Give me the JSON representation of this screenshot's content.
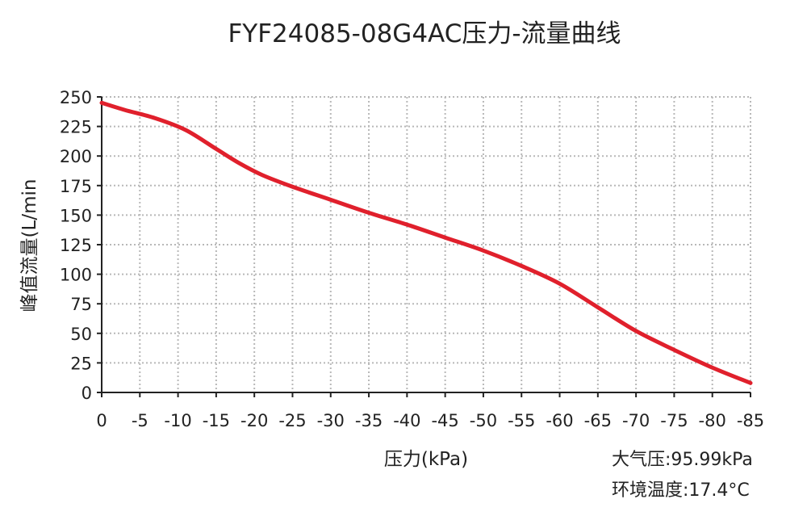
{
  "chart_data": {
    "type": "line",
    "title": "FYF24085-08G4AC压力-流量曲线",
    "xlabel": "压力(kPa)",
    "ylabel": "峰值流量(L/min",
    "x_ticks": [
      "0",
      "-5",
      "-10",
      "-15",
      "-20",
      "-25",
      "-30",
      "-35",
      "-40",
      "-45",
      "-50",
      "-55",
      "-60",
      "-65",
      "-70",
      "-75",
      "-80",
      "-85"
    ],
    "y_ticks": [
      "0",
      "25",
      "50",
      "75",
      "100",
      "125",
      "150",
      "175",
      "200",
      "225",
      "250"
    ],
    "xlim": [
      0,
      -85
    ],
    "ylim": [
      0,
      250
    ],
    "grid": true,
    "series": [
      {
        "color": "#e0202c",
        "x": [
          0,
          -3,
          -7,
          -11,
          -15,
          -18,
          -21,
          -25,
          -30,
          -35,
          -40,
          -45,
          -50,
          -55,
          -60,
          -65,
          -70,
          -75,
          -80,
          -85
        ],
        "y": [
          245,
          239,
          232,
          222,
          206,
          194,
          184,
          174,
          163,
          152,
          142,
          131,
          120,
          107,
          92,
          72,
          52,
          36,
          21,
          8
        ]
      }
    ],
    "annotations": [
      "大气压:95.99kPa",
      "环境温度:17.4°C"
    ]
  }
}
